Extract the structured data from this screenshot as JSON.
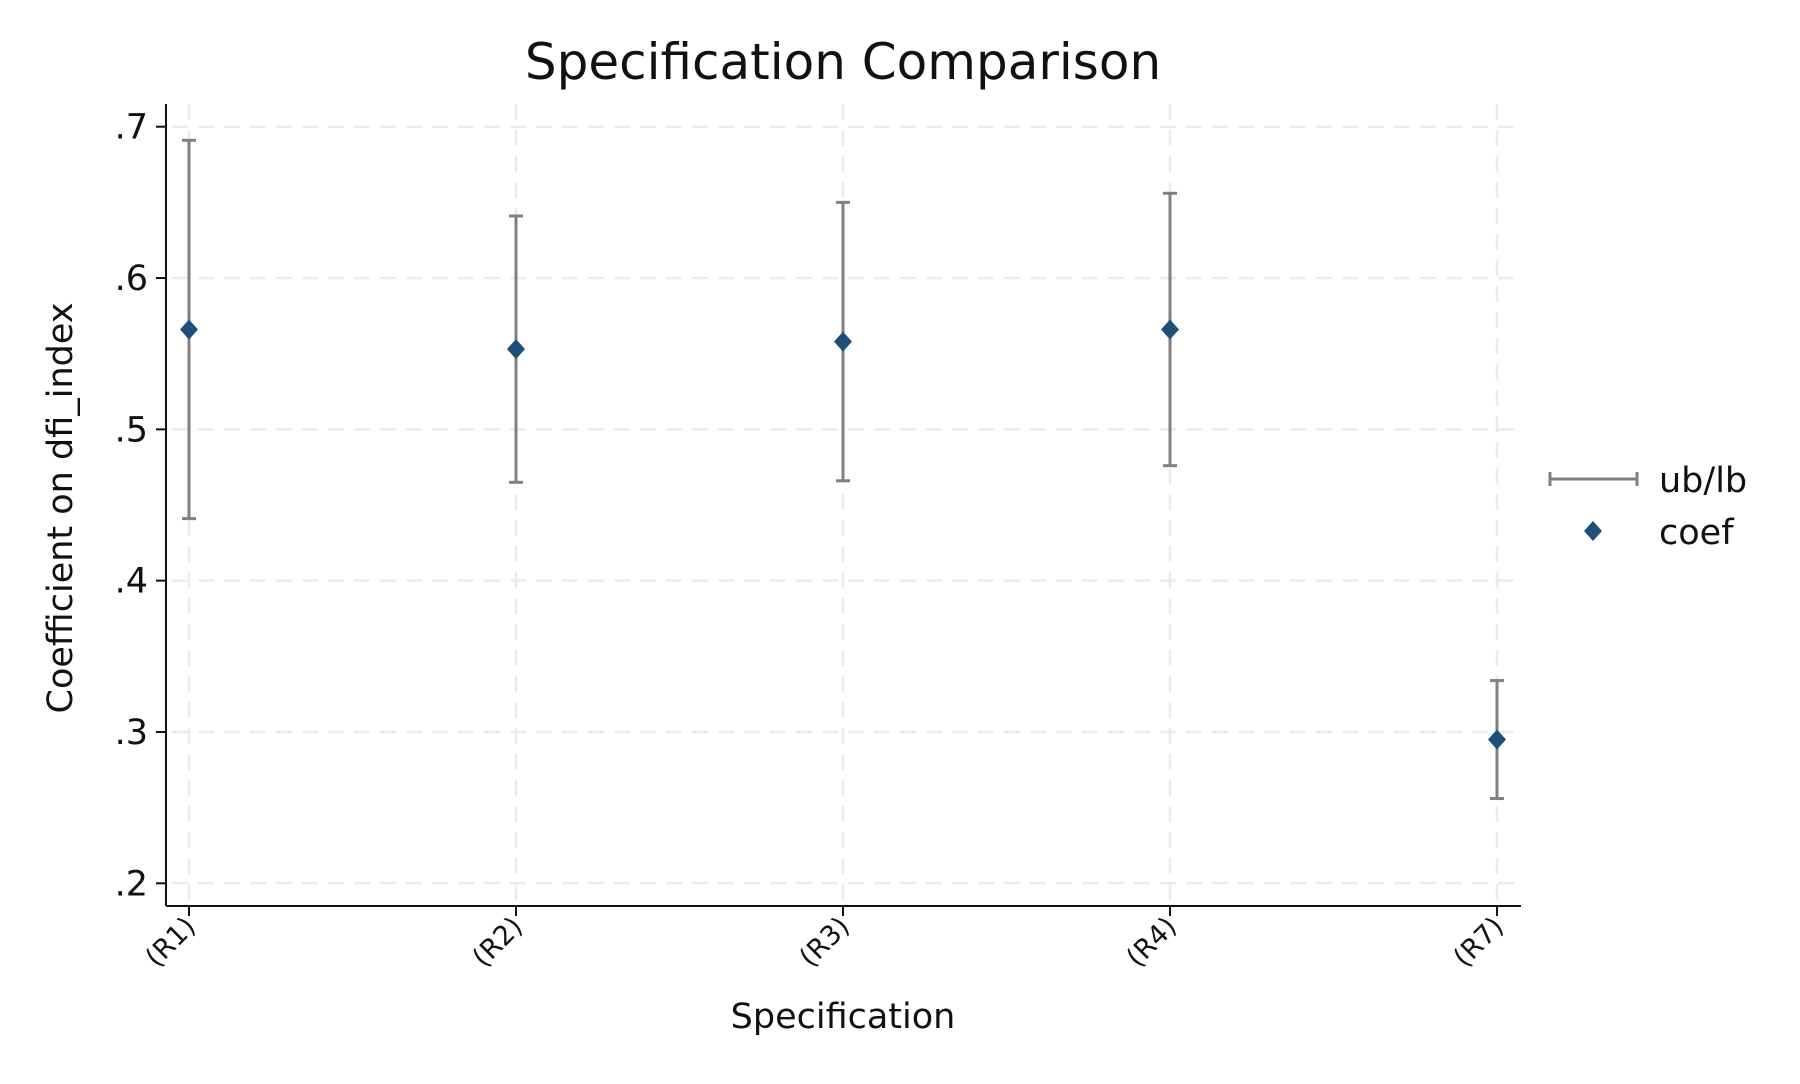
{
  "chart_data": {
    "type": "scatter",
    "title": "Specification Comparison",
    "xlabel": "Specification",
    "ylabel": "Coefficient on dfi_index",
    "categories": [
      "(R1)",
      "(R2)",
      "(R3)",
      "(R4)",
      "(R7)"
    ],
    "ylim": [
      0.185,
      0.715
    ],
    "yticks": [
      0.2,
      0.3,
      0.4,
      0.5,
      0.6,
      0.7
    ],
    "ytick_labels": [
      ".2",
      ".3",
      ".4",
      ".5",
      ".6",
      ".7"
    ],
    "grid": true,
    "legend_position": "right",
    "series": [
      {
        "name": "ub/lb",
        "kind": "errorbar",
        "color": "#808080",
        "lower": [
          0.441,
          0.465,
          0.466,
          0.476,
          0.256
        ],
        "upper": [
          0.691,
          0.641,
          0.65,
          0.656,
          0.334
        ]
      },
      {
        "name": "coef",
        "kind": "point",
        "marker": "diamond",
        "color": "#1f4e79",
        "values": [
          0.566,
          0.553,
          0.558,
          0.566,
          0.295
        ]
      }
    ]
  }
}
